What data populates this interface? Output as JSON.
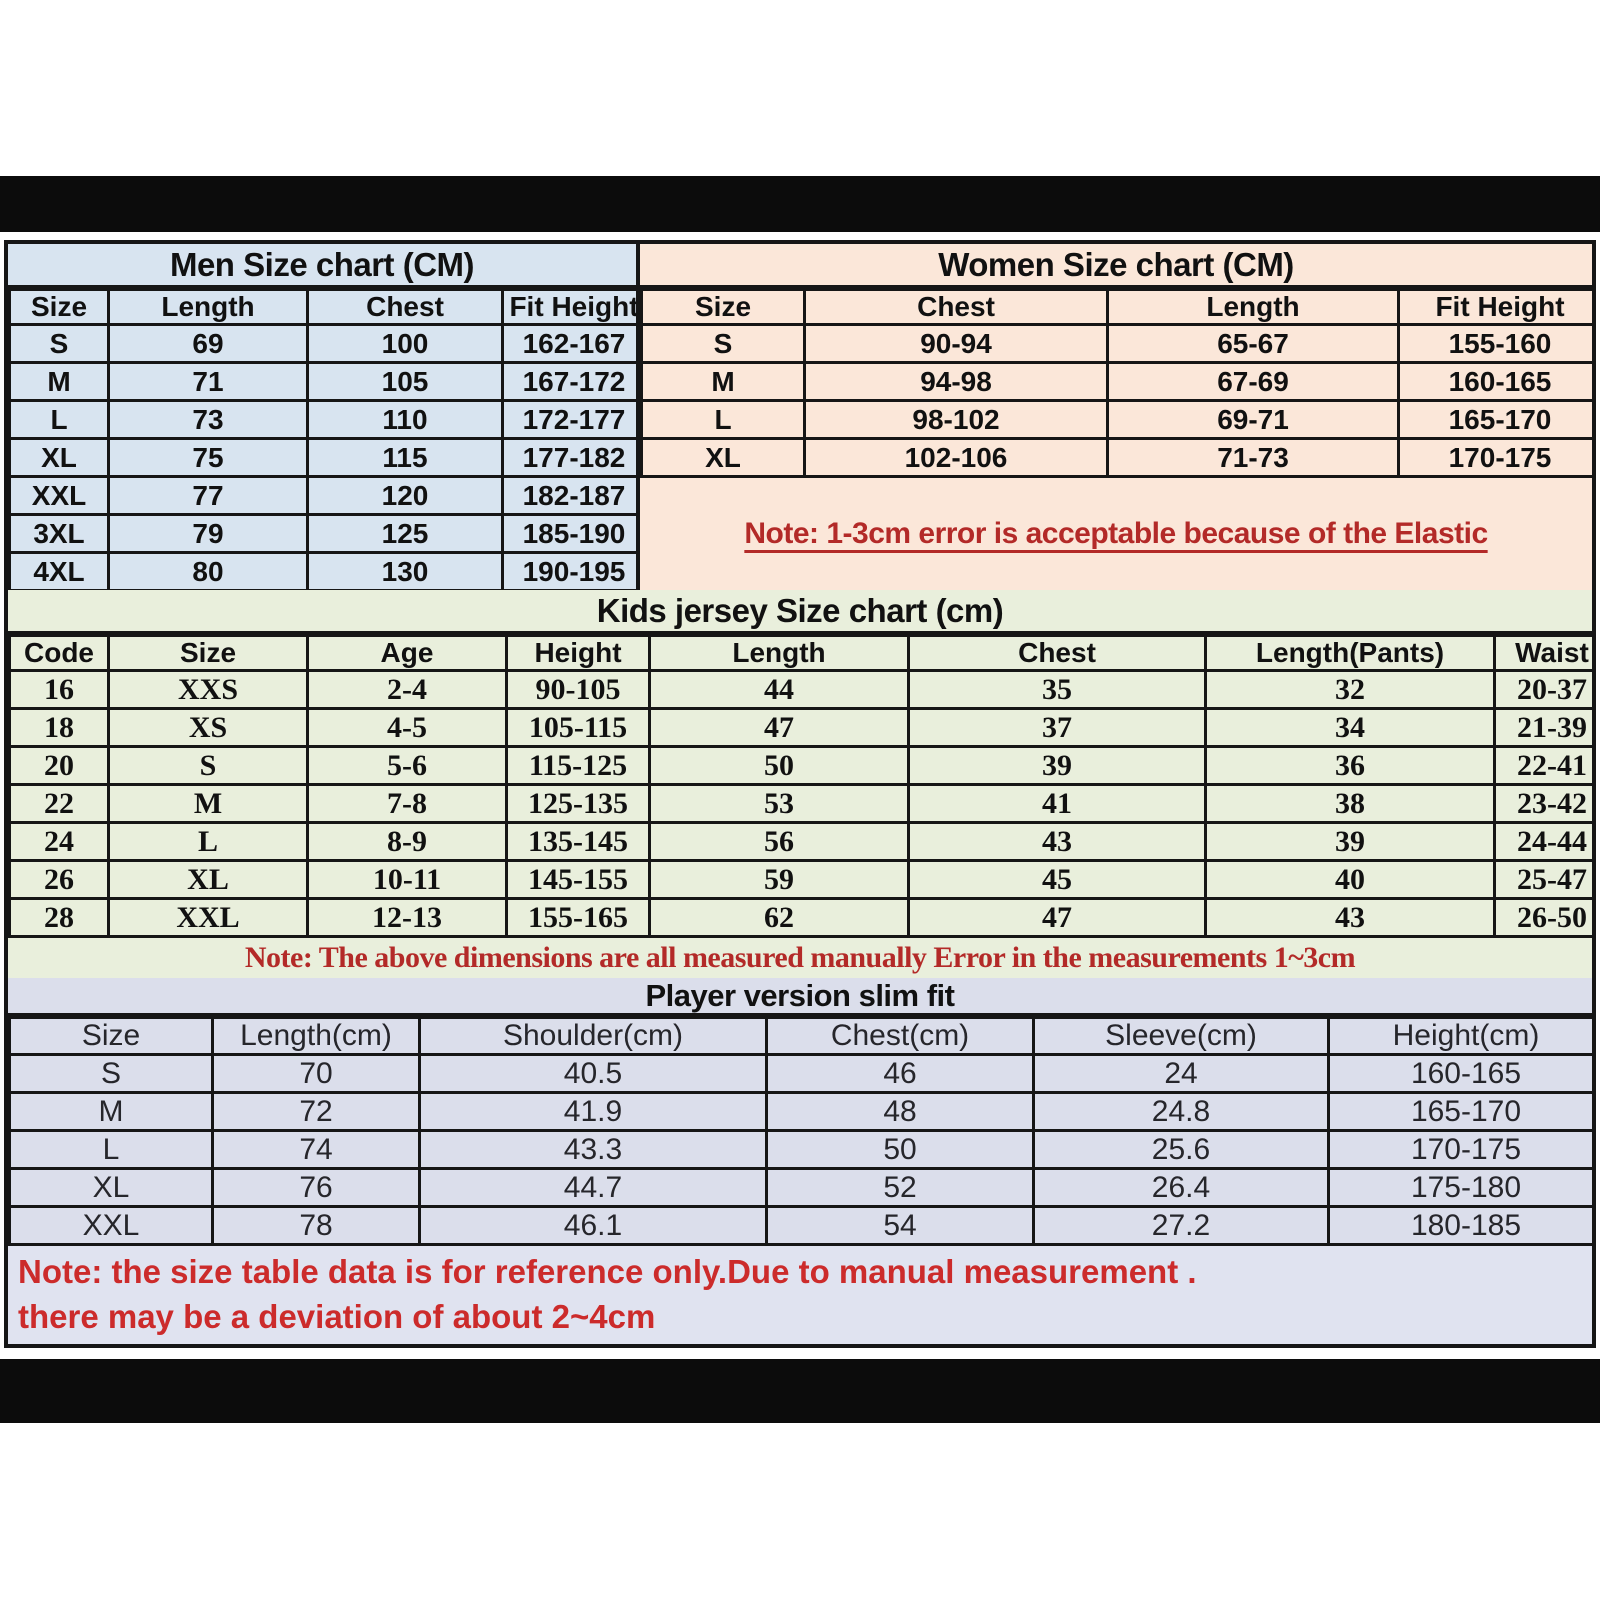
{
  "colors": {
    "men_table_bg": "#d8e4f0",
    "women_table_bg": "#fbe7d9",
    "kids_table_bg": "#e9efdc",
    "player_table_bg": "#dbdeeb",
    "footer_note_bg": "#e0e3f0",
    "note_red": "#b32a28",
    "footer_red": "#cc2b2b",
    "grid_border": "#161616",
    "black_band": "#0c0c0c"
  },
  "chart_data": [
    {
      "type": "table",
      "title": "Men Size chart (CM)",
      "columns": [
        "Size",
        "Length",
        "Chest",
        "Fit Height"
      ],
      "rows": [
        [
          "S",
          "69",
          "100",
          "162-167"
        ],
        [
          "M",
          "71",
          "105",
          "167-172"
        ],
        [
          "L",
          "73",
          "110",
          "172-177"
        ],
        [
          "XL",
          "75",
          "115",
          "177-182"
        ],
        [
          "XXL",
          "77",
          "120",
          "182-187"
        ],
        [
          "3XL",
          "79",
          "125",
          "185-190"
        ],
        [
          "4XL",
          "80",
          "130",
          "190-195"
        ]
      ]
    },
    {
      "type": "table",
      "title": "Women Size chart (CM)",
      "columns": [
        "Size",
        "Chest",
        "Length",
        "Fit Height"
      ],
      "rows": [
        [
          "S",
          "90-94",
          "65-67",
          "155-160"
        ],
        [
          "M",
          "94-98",
          "67-69",
          "160-165"
        ],
        [
          "L",
          "98-102",
          "69-71",
          "165-170"
        ],
        [
          "XL",
          "102-106",
          "71-73",
          "170-175"
        ]
      ],
      "note": "Note: 1-3cm error is acceptable because of the Elastic"
    },
    {
      "type": "table",
      "title": "Kids jersey Size chart (cm)",
      "columns": [
        "Code",
        "Size",
        "Age",
        "Height",
        "Length",
        "Chest",
        "Length(Pants)",
        "Waist"
      ],
      "rows": [
        [
          "16",
          "XXS",
          "2-4",
          "90-105",
          "44",
          "35",
          "32",
          "20-37"
        ],
        [
          "18",
          "XS",
          "4-5",
          "105-115",
          "47",
          "37",
          "34",
          "21-39"
        ],
        [
          "20",
          "S",
          "5-6",
          "115-125",
          "50",
          "39",
          "36",
          "22-41"
        ],
        [
          "22",
          "M",
          "7-8",
          "125-135",
          "53",
          "41",
          "38",
          "23-42"
        ],
        [
          "24",
          "L",
          "8-9",
          "135-145",
          "56",
          "43",
          "39",
          "24-44"
        ],
        [
          "26",
          "XL",
          "10-11",
          "145-155",
          "59",
          "45",
          "40",
          "25-47"
        ],
        [
          "28",
          "XXL",
          "12-13",
          "155-165",
          "62",
          "47",
          "43",
          "26-50"
        ]
      ],
      "note": "Note: The above dimensions are all measured manually Error in the measurements 1~3cm"
    },
    {
      "type": "table",
      "title": "Player version slim fit",
      "columns": [
        "Size",
        "Length(cm)",
        "Shoulder(cm)",
        "Chest(cm)",
        "Sleeve(cm)",
        "Height(cm)"
      ],
      "rows": [
        [
          "S",
          "70",
          "40.5",
          "46",
          "24",
          "160-165"
        ],
        [
          "M",
          "72",
          "41.9",
          "48",
          "24.8",
          "165-170"
        ],
        [
          "L",
          "74",
          "43.3",
          "50",
          "25.6",
          "170-175"
        ],
        [
          "XL",
          "76",
          "44.7",
          "52",
          "26.4",
          "175-180"
        ],
        [
          "XXL",
          "78",
          "46.1",
          "54",
          "27.2",
          "180-185"
        ]
      ]
    }
  ],
  "footer_note": {
    "line1": "Note:  the size table data is for reference only.Due to manual measurement .",
    "line2": "there may be a deviation of about 2~4cm"
  }
}
